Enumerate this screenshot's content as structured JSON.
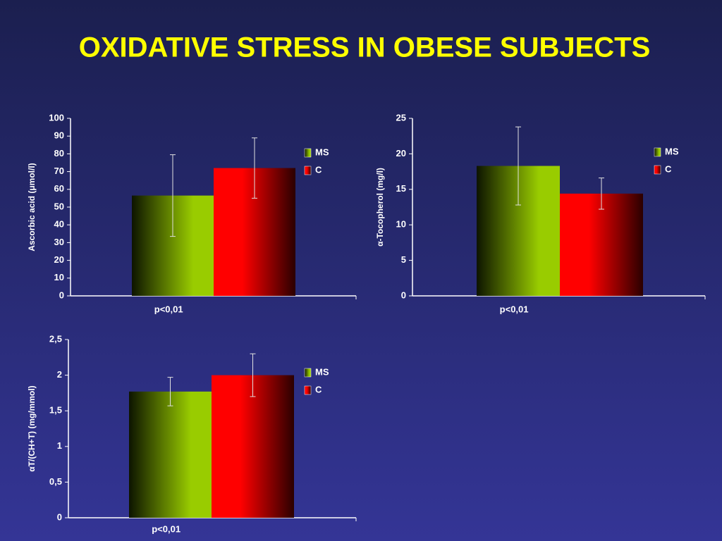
{
  "title": "OXIDATIVE STRESS IN OBESE SUBJECTS",
  "chart_data": [
    {
      "type": "bar",
      "y_label": "Ascorbic acid (μmol/l)",
      "categories": [
        "p<0,01"
      ],
      "series": [
        {
          "name": "MS",
          "color": "#99cc00",
          "values": [
            56.5
          ],
          "errors": [
            23
          ]
        },
        {
          "name": "C",
          "color": "#ff0000",
          "values": [
            72
          ],
          "errors": [
            17
          ]
        }
      ],
      "ylim": [
        0,
        100
      ],
      "yticks": [
        0,
        10,
        20,
        30,
        40,
        50,
        60,
        70,
        80,
        90,
        100
      ]
    },
    {
      "type": "bar",
      "y_label": "α-Tocopherol (mg/l)",
      "categories": [
        "p<0,01"
      ],
      "series": [
        {
          "name": "MS",
          "color": "#99cc00",
          "values": [
            18.3
          ],
          "errors": [
            5.5
          ]
        },
        {
          "name": "C",
          "color": "#ff0000",
          "values": [
            14.4
          ],
          "errors": [
            2.2
          ]
        }
      ],
      "ylim": [
        0,
        25
      ],
      "yticks": [
        0,
        5,
        10,
        15,
        20,
        25
      ]
    },
    {
      "type": "bar",
      "y_label": "αT/(CH+T) (mg/mmol)",
      "categories": [
        "p<0,01"
      ],
      "series": [
        {
          "name": "MS",
          "color": "#99cc00",
          "values": [
            1.77
          ],
          "errors": [
            0.2
          ]
        },
        {
          "name": "C",
          "color": "#ff0000",
          "values": [
            2.0
          ],
          "errors": [
            0.3
          ]
        }
      ],
      "ylim": [
        0,
        2.5
      ],
      "yticks": [
        0,
        {
          "value": 0.5,
          "label": "0,5"
        },
        1,
        {
          "value": 1.5,
          "label": "1,5"
        },
        2,
        {
          "value": 2.5,
          "label": "2,5"
        }
      ]
    }
  ]
}
